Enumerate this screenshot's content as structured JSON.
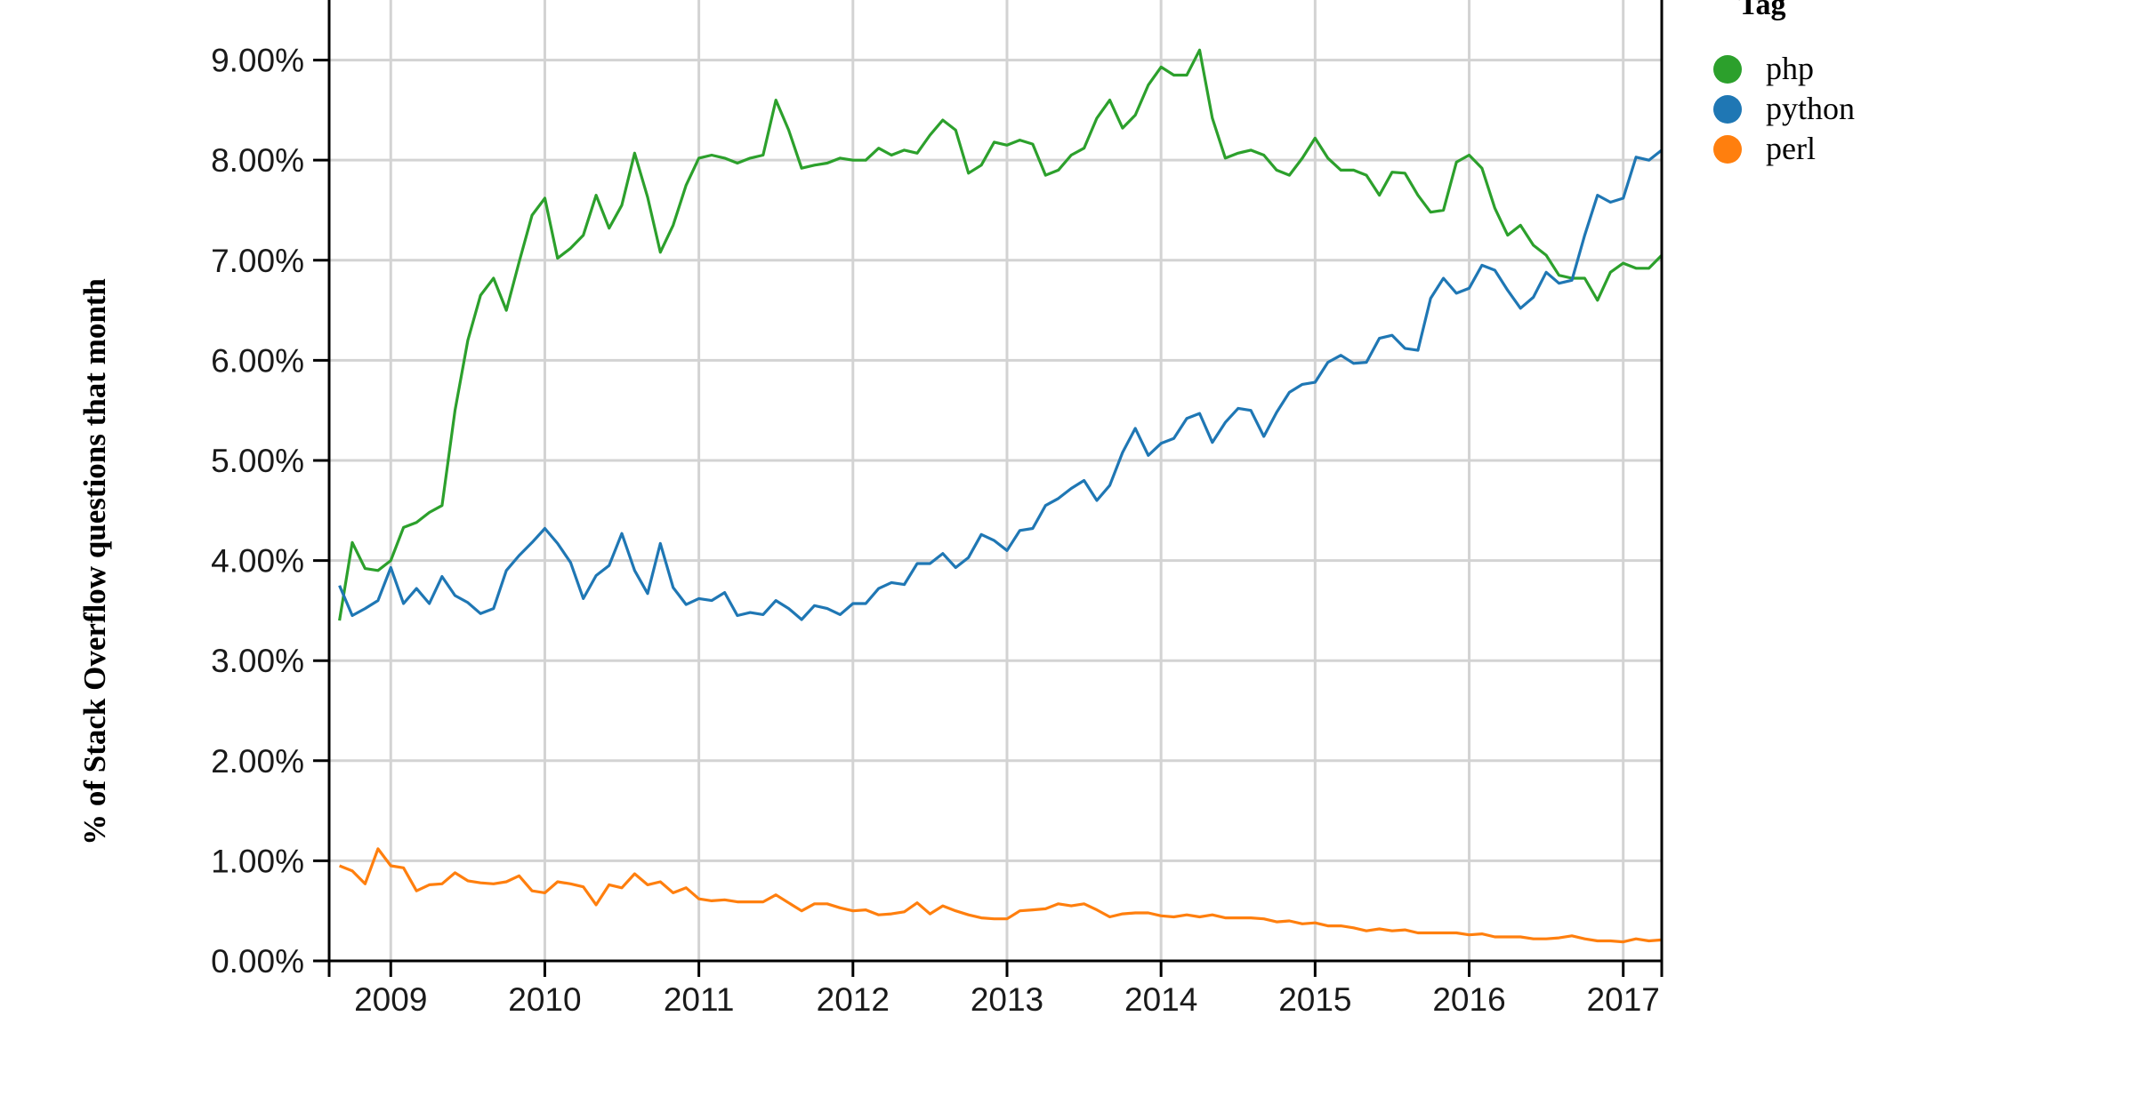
{
  "chart_data": {
    "type": "line",
    "ylabel": "% of Stack Overflow questions that month",
    "xlabel": "",
    "x_range": [
      2008.6,
      2017.25
    ],
    "ylim": [
      0,
      9.6
    ],
    "y_ticks": [
      0,
      1,
      2,
      3,
      4,
      5,
      6,
      7,
      8,
      9
    ],
    "y_tick_labels": [
      "0.00%",
      "1.00%",
      "2.00%",
      "3.00%",
      "4.00%",
      "5.00%",
      "6.00%",
      "7.00%",
      "8.00%",
      "9.00%"
    ],
    "x_ticks": [
      2009,
      2010,
      2011,
      2012,
      2013,
      2014,
      2015,
      2016,
      2017
    ],
    "x_tick_labels": [
      "2009",
      "2010",
      "2011",
      "2012",
      "2013",
      "2014",
      "2015",
      "2016",
      "2017"
    ],
    "grid": true,
    "legend": {
      "title": "Tag",
      "position": "top-right",
      "items": [
        "php",
        "python",
        "perl"
      ]
    },
    "series": [
      {
        "name": "php",
        "color": "#2ca02c",
        "x": [
          2008.667,
          2008.75,
          2008.833,
          2008.917,
          2009.0,
          2009.083,
          2009.167,
          2009.25,
          2009.333,
          2009.417,
          2009.5,
          2009.583,
          2009.667,
          2009.75,
          2009.833,
          2009.917,
          2010.0,
          2010.083,
          2010.167,
          2010.25,
          2010.333,
          2010.417,
          2010.5,
          2010.583,
          2010.667,
          2010.75,
          2010.833,
          2010.917,
          2011.0,
          2011.083,
          2011.167,
          2011.25,
          2011.333,
          2011.417,
          2011.5,
          2011.583,
          2011.667,
          2011.75,
          2011.833,
          2011.917,
          2012.0,
          2012.083,
          2012.167,
          2012.25,
          2012.333,
          2012.417,
          2012.5,
          2012.583,
          2012.667,
          2012.75,
          2012.833,
          2012.917,
          2013.0,
          2013.083,
          2013.167,
          2013.25,
          2013.333,
          2013.417,
          2013.5,
          2013.583,
          2013.667,
          2013.75,
          2013.833,
          2013.917,
          2014.0,
          2014.083,
          2014.167,
          2014.25,
          2014.333,
          2014.417,
          2014.5,
          2014.583,
          2014.667,
          2014.75,
          2014.833,
          2014.917,
          2015.0,
          2015.083,
          2015.167,
          2015.25,
          2015.333,
          2015.417,
          2015.5,
          2015.583,
          2015.667,
          2015.75,
          2015.833,
          2015.917,
          2016.0,
          2016.083,
          2016.167,
          2016.25,
          2016.333,
          2016.417,
          2016.5,
          2016.583,
          2016.667,
          2016.75,
          2016.833,
          2016.917,
          2017.0,
          2017.083,
          2017.167,
          2017.25
        ],
        "values": [
          3.4,
          4.18,
          3.92,
          3.9,
          4.0,
          4.33,
          4.38,
          4.48,
          4.55,
          5.5,
          6.2,
          6.65,
          6.82,
          6.5,
          6.98,
          7.45,
          7.62,
          7.02,
          7.12,
          7.25,
          7.65,
          7.32,
          7.55,
          8.07,
          7.63,
          7.08,
          7.35,
          7.75,
          8.02,
          8.05,
          8.02,
          7.97,
          8.02,
          8.05,
          8.6,
          8.3,
          7.92,
          7.95,
          7.97,
          8.02,
          8.0,
          8.0,
          8.12,
          8.05,
          8.1,
          8.07,
          8.25,
          8.4,
          8.3,
          7.87,
          7.95,
          8.18,
          8.15,
          8.2,
          8.16,
          7.85,
          7.9,
          8.05,
          8.12,
          8.42,
          8.6,
          8.32,
          8.45,
          8.75,
          8.93,
          8.85,
          8.85,
          9.1,
          8.42,
          8.02,
          8.07,
          8.1,
          8.05,
          7.9,
          7.85,
          8.02,
          8.22,
          8.02,
          7.9,
          7.9,
          7.85,
          7.65,
          7.88,
          7.87,
          7.65,
          7.48,
          7.5,
          7.98,
          8.05,
          7.92,
          7.52,
          7.25,
          7.35,
          7.15,
          7.05,
          6.85,
          6.82,
          6.82,
          6.6,
          6.88,
          6.97,
          6.92,
          6.92,
          7.05
        ]
      },
      {
        "name": "python",
        "color": "#1f77b4",
        "x": [
          2008.667,
          2008.75,
          2008.833,
          2008.917,
          2009.0,
          2009.083,
          2009.167,
          2009.25,
          2009.333,
          2009.417,
          2009.5,
          2009.583,
          2009.667,
          2009.75,
          2009.833,
          2009.917,
          2010.0,
          2010.083,
          2010.167,
          2010.25,
          2010.333,
          2010.417,
          2010.5,
          2010.583,
          2010.667,
          2010.75,
          2010.833,
          2010.917,
          2011.0,
          2011.083,
          2011.167,
          2011.25,
          2011.333,
          2011.417,
          2011.5,
          2011.583,
          2011.667,
          2011.75,
          2011.833,
          2011.917,
          2012.0,
          2012.083,
          2012.167,
          2012.25,
          2012.333,
          2012.417,
          2012.5,
          2012.583,
          2012.667,
          2012.75,
          2012.833,
          2012.917,
          2013.0,
          2013.083,
          2013.167,
          2013.25,
          2013.333,
          2013.417,
          2013.5,
          2013.583,
          2013.667,
          2013.75,
          2013.833,
          2013.917,
          2014.0,
          2014.083,
          2014.167,
          2014.25,
          2014.333,
          2014.417,
          2014.5,
          2014.583,
          2014.667,
          2014.75,
          2014.833,
          2014.917,
          2015.0,
          2015.083,
          2015.167,
          2015.25,
          2015.333,
          2015.417,
          2015.5,
          2015.583,
          2015.667,
          2015.75,
          2015.833,
          2015.917,
          2016.0,
          2016.083,
          2016.167,
          2016.25,
          2016.333,
          2016.417,
          2016.5,
          2016.583,
          2016.667,
          2016.75,
          2016.833,
          2016.917,
          2017.0,
          2017.083,
          2017.167,
          2017.25
        ],
        "values": [
          3.75,
          3.45,
          3.52,
          3.6,
          3.93,
          3.57,
          3.72,
          3.57,
          3.84,
          3.65,
          3.58,
          3.47,
          3.52,
          3.9,
          4.05,
          4.18,
          4.32,
          4.17,
          3.98,
          3.62,
          3.85,
          3.95,
          4.27,
          3.9,
          3.67,
          4.17,
          3.73,
          3.56,
          3.62,
          3.6,
          3.68,
          3.45,
          3.48,
          3.46,
          3.6,
          3.52,
          3.41,
          3.55,
          3.52,
          3.46,
          3.57,
          3.57,
          3.72,
          3.78,
          3.76,
          3.97,
          3.97,
          4.07,
          3.93,
          4.03,
          4.26,
          4.2,
          4.1,
          4.3,
          4.32,
          4.55,
          4.62,
          4.72,
          4.8,
          4.6,
          4.75,
          5.08,
          5.32,
          5.05,
          5.17,
          5.22,
          5.42,
          5.47,
          5.18,
          5.38,
          5.52,
          5.5,
          5.24,
          5.48,
          5.68,
          5.76,
          5.78,
          5.98,
          6.05,
          5.97,
          5.98,
          6.22,
          6.25,
          6.12,
          6.1,
          6.62,
          6.82,
          6.67,
          6.72,
          6.95,
          6.9,
          6.7,
          6.52,
          6.63,
          6.88,
          6.77,
          6.8,
          7.25,
          7.65,
          7.58,
          7.62,
          8.03,
          8.0,
          8.1
        ]
      },
      {
        "name": "perl",
        "color": "#ff7f0e",
        "x": [
          2008.667,
          2008.75,
          2008.833,
          2008.917,
          2009.0,
          2009.083,
          2009.167,
          2009.25,
          2009.333,
          2009.417,
          2009.5,
          2009.583,
          2009.667,
          2009.75,
          2009.833,
          2009.917,
          2010.0,
          2010.083,
          2010.167,
          2010.25,
          2010.333,
          2010.417,
          2010.5,
          2010.583,
          2010.667,
          2010.75,
          2010.833,
          2010.917,
          2011.0,
          2011.083,
          2011.167,
          2011.25,
          2011.333,
          2011.417,
          2011.5,
          2011.583,
          2011.667,
          2011.75,
          2011.833,
          2011.917,
          2012.0,
          2012.083,
          2012.167,
          2012.25,
          2012.333,
          2012.417,
          2012.5,
          2012.583,
          2012.667,
          2012.75,
          2012.833,
          2012.917,
          2013.0,
          2013.083,
          2013.167,
          2013.25,
          2013.333,
          2013.417,
          2013.5,
          2013.583,
          2013.667,
          2013.75,
          2013.833,
          2013.917,
          2014.0,
          2014.083,
          2014.167,
          2014.25,
          2014.333,
          2014.417,
          2014.5,
          2014.583,
          2014.667,
          2014.75,
          2014.833,
          2014.917,
          2015.0,
          2015.083,
          2015.167,
          2015.25,
          2015.333,
          2015.417,
          2015.5,
          2015.583,
          2015.667,
          2015.75,
          2015.833,
          2015.917,
          2016.0,
          2016.083,
          2016.167,
          2016.25,
          2016.333,
          2016.417,
          2016.5,
          2016.583,
          2016.667,
          2016.75,
          2016.833,
          2016.917,
          2017.0,
          2017.083,
          2017.167,
          2017.25
        ],
        "values": [
          0.95,
          0.9,
          0.77,
          1.12,
          0.95,
          0.93,
          0.7,
          0.76,
          0.77,
          0.88,
          0.8,
          0.78,
          0.77,
          0.79,
          0.85,
          0.7,
          0.68,
          0.79,
          0.77,
          0.74,
          0.56,
          0.76,
          0.73,
          0.87,
          0.76,
          0.79,
          0.68,
          0.73,
          0.62,
          0.6,
          0.61,
          0.59,
          0.59,
          0.59,
          0.66,
          0.58,
          0.5,
          0.57,
          0.57,
          0.53,
          0.5,
          0.51,
          0.46,
          0.47,
          0.49,
          0.58,
          0.47,
          0.55,
          0.5,
          0.46,
          0.43,
          0.42,
          0.42,
          0.5,
          0.51,
          0.52,
          0.57,
          0.55,
          0.57,
          0.51,
          0.44,
          0.47,
          0.48,
          0.48,
          0.45,
          0.44,
          0.46,
          0.44,
          0.46,
          0.43,
          0.43,
          0.43,
          0.42,
          0.39,
          0.4,
          0.37,
          0.38,
          0.35,
          0.35,
          0.33,
          0.3,
          0.32,
          0.3,
          0.31,
          0.28,
          0.28,
          0.28,
          0.28,
          0.26,
          0.27,
          0.24,
          0.24,
          0.24,
          0.22,
          0.22,
          0.23,
          0.25,
          0.22,
          0.2,
          0.2,
          0.19,
          0.22,
          0.2,
          0.21
        ]
      }
    ]
  }
}
